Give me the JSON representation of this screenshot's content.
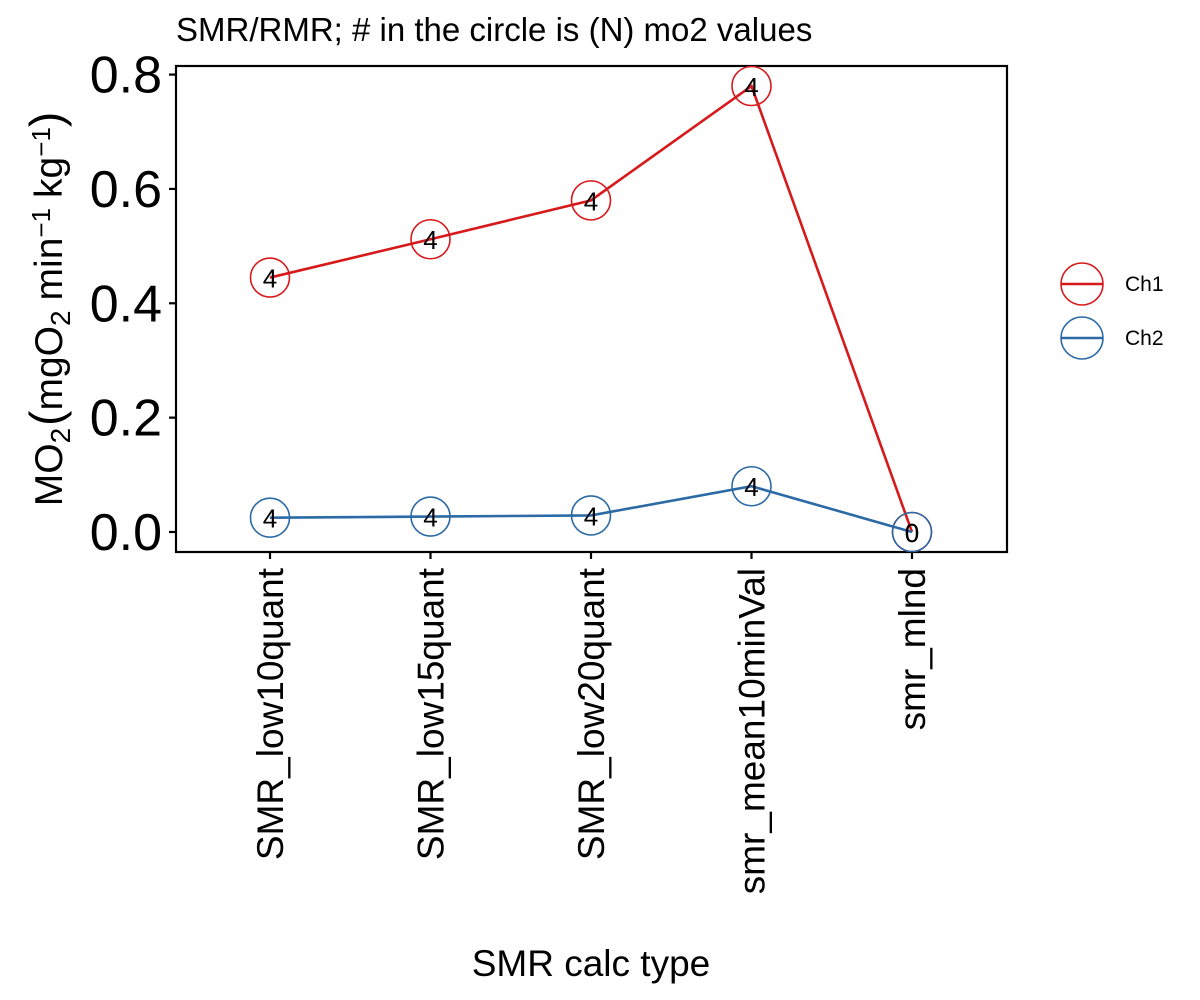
{
  "chart_data": {
    "type": "line",
    "title": "SMR/RMR; # in the circle is (N) mo2 values",
    "xlabel": "SMR calc type",
    "ylabel": {
      "main": "MO",
      "main_sub": "2",
      "unit_a": "mgO",
      "unit_a_sub": "2",
      "unit_b": "min",
      "unit_b_sup": "−1",
      "unit_c": "kg",
      "unit_c_sup": "−1"
    },
    "categories": [
      "SMR_low10quant",
      "SMR_low15quant",
      "SMR_low20quant",
      "smr_mean10minVal",
      "smr_mlnd"
    ],
    "ylim": [
      -0.035,
      0.815
    ],
    "yticks": [
      0.0,
      0.2,
      0.4,
      0.6,
      0.8
    ],
    "ytick_labels": [
      "0.0",
      "0.2",
      "0.4",
      "0.6",
      "0.8"
    ],
    "grid": false,
    "legend_position": "right",
    "series": [
      {
        "name": "Ch1",
        "color": "#d7191c",
        "values": [
          0.445,
          0.512,
          0.58,
          0.78,
          0.0
        ],
        "n": [
          "4",
          "4",
          "4",
          "4",
          "0"
        ]
      },
      {
        "name": "Ch2",
        "color": "#2c6aa6",
        "values": [
          0.025,
          0.027,
          0.029,
          0.08,
          0.0
        ],
        "n": [
          "4",
          "4",
          "4",
          "4",
          "0"
        ]
      }
    ]
  }
}
